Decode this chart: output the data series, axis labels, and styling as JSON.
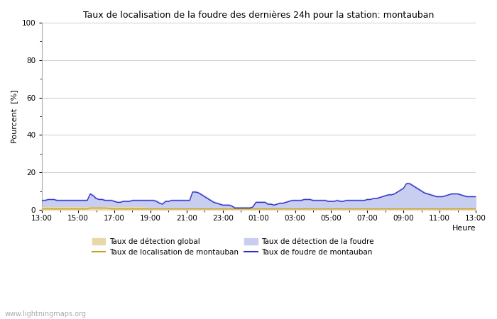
{
  "title": "Taux de localisation de la foudre des dernières 24h pour la station: montauban",
  "xlabel": "Heure",
  "ylabel": "Pourcent  [%]",
  "ylim": [
    0,
    100
  ],
  "yticks": [
    0,
    20,
    40,
    60,
    80,
    100
  ],
  "watermark": "www.lightningmaps.org",
  "x_labels": [
    "13:00",
    "15:00",
    "17:00",
    "19:00",
    "21:00",
    "23:00",
    "01:00",
    "03:00",
    "05:00",
    "07:00",
    "09:00",
    "11:00",
    "13:00"
  ],
  "background_color": "#ffffff",
  "plot_bg_color": "#ffffff",
  "grid_color": "#cccccc",
  "colors": {
    "detection_global_fill": "#e8d8a8",
    "detection_foudre_fill": "#c8cef0",
    "localisation_montauban_line": "#c8a020",
    "foudre_montauban_line": "#3030cc"
  },
  "n_points": 145,
  "detection_global": [
    1.5,
    1.5,
    1.5,
    1.5,
    1.5,
    1.5,
    1.5,
    1.5,
    1.5,
    1.5,
    1.5,
    1.5,
    1.5,
    1.5,
    1.5,
    1.5,
    1.5,
    1.5,
    1.5,
    1.5,
    1.5,
    1.5,
    1.5,
    1.5,
    1.5,
    1.5,
    1.5,
    1.5,
    1.5,
    1.5,
    1.5,
    1.5,
    1.5,
    1.5,
    1.5,
    0.8,
    0.8,
    0.8,
    0.8,
    0.8,
    0.8,
    0.8,
    0.8,
    0.8,
    0.8,
    0.8,
    0.8,
    0.8,
    0.8,
    0.8,
    0.8,
    0.8,
    0.8,
    0.8,
    0.8,
    0.8,
    0.8,
    0.8,
    0.8,
    0.8,
    0.8,
    0.8,
    0.8,
    0.8,
    0.8,
    0.8,
    0.8,
    0.8,
    0.8,
    0.8,
    0.8,
    0.8,
    0.8,
    0.8,
    0.8,
    0.8,
    0.8,
    0.8,
    0.8,
    0.8,
    0.8,
    0.8,
    0.8,
    0.8,
    0.8,
    0.8,
    0.8,
    0.8,
    0.8,
    0.8,
    0.8,
    0.8,
    0.8,
    0.8,
    0.8,
    0.8,
    0.8,
    0.8,
    0.8,
    0.8,
    0.8,
    0.8,
    0.8,
    0.8,
    0.8,
    0.8,
    0.8,
    0.8,
    0.8,
    0.8,
    0.8,
    0.8,
    0.8,
    0.8,
    0.8,
    0.8,
    0.8,
    0.8,
    0.8,
    0.8,
    0.8,
    0.8,
    0.8,
    0.8,
    0.8,
    0.8,
    0.8,
    0.8,
    0.8,
    0.8,
    0.8,
    0.8,
    0.8,
    0.8,
    0.8,
    0.8,
    0.8,
    0.8,
    0.8,
    0.8,
    0.8,
    0.8,
    0.8,
    0.8,
    0.8
  ],
  "detection_foudre": [
    5.5,
    5.5,
    5.8,
    5.8,
    5.8,
    5.5,
    5.5,
    5.5,
    5.5,
    5.5,
    5.5,
    5.5,
    5.5,
    5.5,
    5.5,
    5.5,
    9.0,
    8.0,
    6.5,
    6.0,
    6.0,
    5.5,
    5.5,
    5.5,
    5.0,
    4.5,
    4.5,
    5.0,
    5.0,
    5.0,
    5.5,
    5.5,
    5.5,
    5.5,
    5.5,
    5.5,
    5.5,
    5.5,
    5.0,
    4.0,
    3.5,
    5.0,
    5.0,
    5.5,
    5.5,
    5.5,
    5.5,
    5.5,
    5.5,
    5.5,
    10.0,
    10.0,
    9.5,
    8.5,
    7.5,
    6.5,
    5.5,
    4.5,
    4.0,
    3.5,
    3.0,
    3.0,
    3.0,
    2.5,
    1.5,
    1.5,
    1.5,
    1.5,
    1.5,
    1.5,
    2.0,
    4.5,
    4.5,
    4.5,
    4.5,
    3.5,
    3.5,
    3.0,
    3.5,
    4.0,
    4.0,
    4.5,
    5.0,
    5.5,
    5.5,
    5.5,
    5.5,
    6.0,
    6.0,
    6.0,
    5.5,
    5.5,
    5.5,
    5.5,
    5.5,
    5.0,
    5.0,
    5.0,
    5.5,
    5.0,
    5.0,
    5.5,
    5.5,
    5.5,
    5.5,
    5.5,
    5.5,
    5.5,
    6.0,
    6.0,
    6.5,
    6.5,
    7.0,
    7.5,
    8.0,
    8.5,
    8.5,
    9.0,
    10.0,
    11.0,
    12.0,
    14.5,
    14.5,
    13.5,
    12.5,
    11.5,
    10.5,
    9.5,
    9.0,
    8.5,
    8.0,
    7.5,
    7.5,
    7.5,
    8.0,
    8.5,
    9.0,
    9.0,
    9.0,
    8.5,
    8.0,
    7.5,
    7.5,
    7.5,
    7.5
  ],
  "localisation_montauban": [
    0.5,
    0.5,
    0.5,
    0.5,
    0.5,
    0.5,
    0.5,
    0.5,
    0.5,
    0.5,
    0.5,
    0.5,
    0.5,
    0.5,
    0.5,
    0.5,
    1.0,
    1.0,
    1.0,
    1.0,
    1.0,
    1.0,
    0.8,
    0.5,
    0.5,
    0.5,
    0.5,
    0.5,
    0.5,
    0.5,
    0.5,
    0.5,
    0.5,
    0.5,
    0.5,
    0.5,
    0.5,
    0.5,
    0.5,
    0.5,
    0.5,
    0.5,
    0.5,
    0.5,
    0.5,
    0.5,
    0.5,
    0.5,
    0.5,
    0.5,
    0.5,
    0.5,
    0.5,
    0.5,
    0.5,
    0.5,
    0.5,
    0.5,
    0.5,
    0.5,
    0.5,
    0.5,
    0.5,
    0.5,
    0.5,
    0.5,
    0.5,
    0.5,
    0.5,
    0.5,
    0.5,
    0.5,
    0.5,
    0.5,
    0.5,
    0.5,
    0.5,
    0.5,
    0.5,
    0.5,
    0.5,
    0.5,
    0.5,
    0.5,
    0.5,
    0.5,
    0.5,
    0.5,
    0.5,
    0.5,
    0.5,
    0.5,
    0.5,
    0.5,
    0.5,
    0.5,
    0.5,
    0.5,
    0.5,
    0.5,
    0.5,
    0.5,
    0.5,
    0.5,
    0.5,
    0.5,
    0.5,
    0.5,
    0.5,
    0.5,
    0.5,
    0.5,
    0.5,
    0.5,
    0.5,
    0.5,
    0.5,
    0.5,
    0.5,
    0.5,
    0.5,
    0.5,
    0.5,
    0.5,
    0.5,
    0.5,
    0.5,
    0.5,
    0.5,
    0.5,
    0.5,
    0.5,
    0.5,
    0.5,
    0.5,
    0.5,
    0.5,
    0.5,
    0.5,
    0.5,
    0.5,
    0.5,
    0.5,
    0.5,
    0.5
  ],
  "foudre_montauban": [
    5.0,
    5.0,
    5.5,
    5.5,
    5.5,
    5.0,
    5.0,
    5.0,
    5.0,
    5.0,
    5.0,
    5.0,
    5.0,
    5.0,
    5.0,
    5.0,
    8.5,
    7.5,
    6.0,
    5.5,
    5.5,
    5.0,
    5.0,
    5.0,
    4.5,
    4.0,
    4.0,
    4.5,
    4.5,
    4.5,
    5.0,
    5.0,
    5.0,
    5.0,
    5.0,
    5.0,
    5.0,
    5.0,
    4.5,
    3.5,
    3.0,
    4.5,
    4.5,
    5.0,
    5.0,
    5.0,
    5.0,
    5.0,
    5.0,
    5.0,
    9.5,
    9.5,
    9.0,
    8.0,
    7.0,
    6.0,
    5.0,
    4.0,
    3.5,
    3.0,
    2.5,
    2.5,
    2.5,
    2.0,
    1.0,
    1.0,
    1.0,
    1.0,
    1.0,
    1.0,
    1.5,
    4.0,
    4.0,
    4.0,
    4.0,
    3.0,
    3.0,
    2.5,
    3.0,
    3.5,
    3.5,
    4.0,
    4.5,
    5.0,
    5.0,
    5.0,
    5.0,
    5.5,
    5.5,
    5.5,
    5.0,
    5.0,
    5.0,
    5.0,
    5.0,
    4.5,
    4.5,
    4.5,
    5.0,
    4.5,
    4.5,
    5.0,
    5.0,
    5.0,
    5.0,
    5.0,
    5.0,
    5.0,
    5.5,
    5.5,
    6.0,
    6.0,
    6.5,
    7.0,
    7.5,
    8.0,
    8.0,
    8.5,
    9.5,
    10.5,
    11.5,
    14.0,
    14.0,
    13.0,
    12.0,
    11.0,
    10.0,
    9.0,
    8.5,
    8.0,
    7.5,
    7.0,
    7.0,
    7.0,
    7.5,
    8.0,
    8.5,
    8.5,
    8.5,
    8.0,
    7.5,
    7.0,
    7.0,
    7.0,
    7.0
  ]
}
